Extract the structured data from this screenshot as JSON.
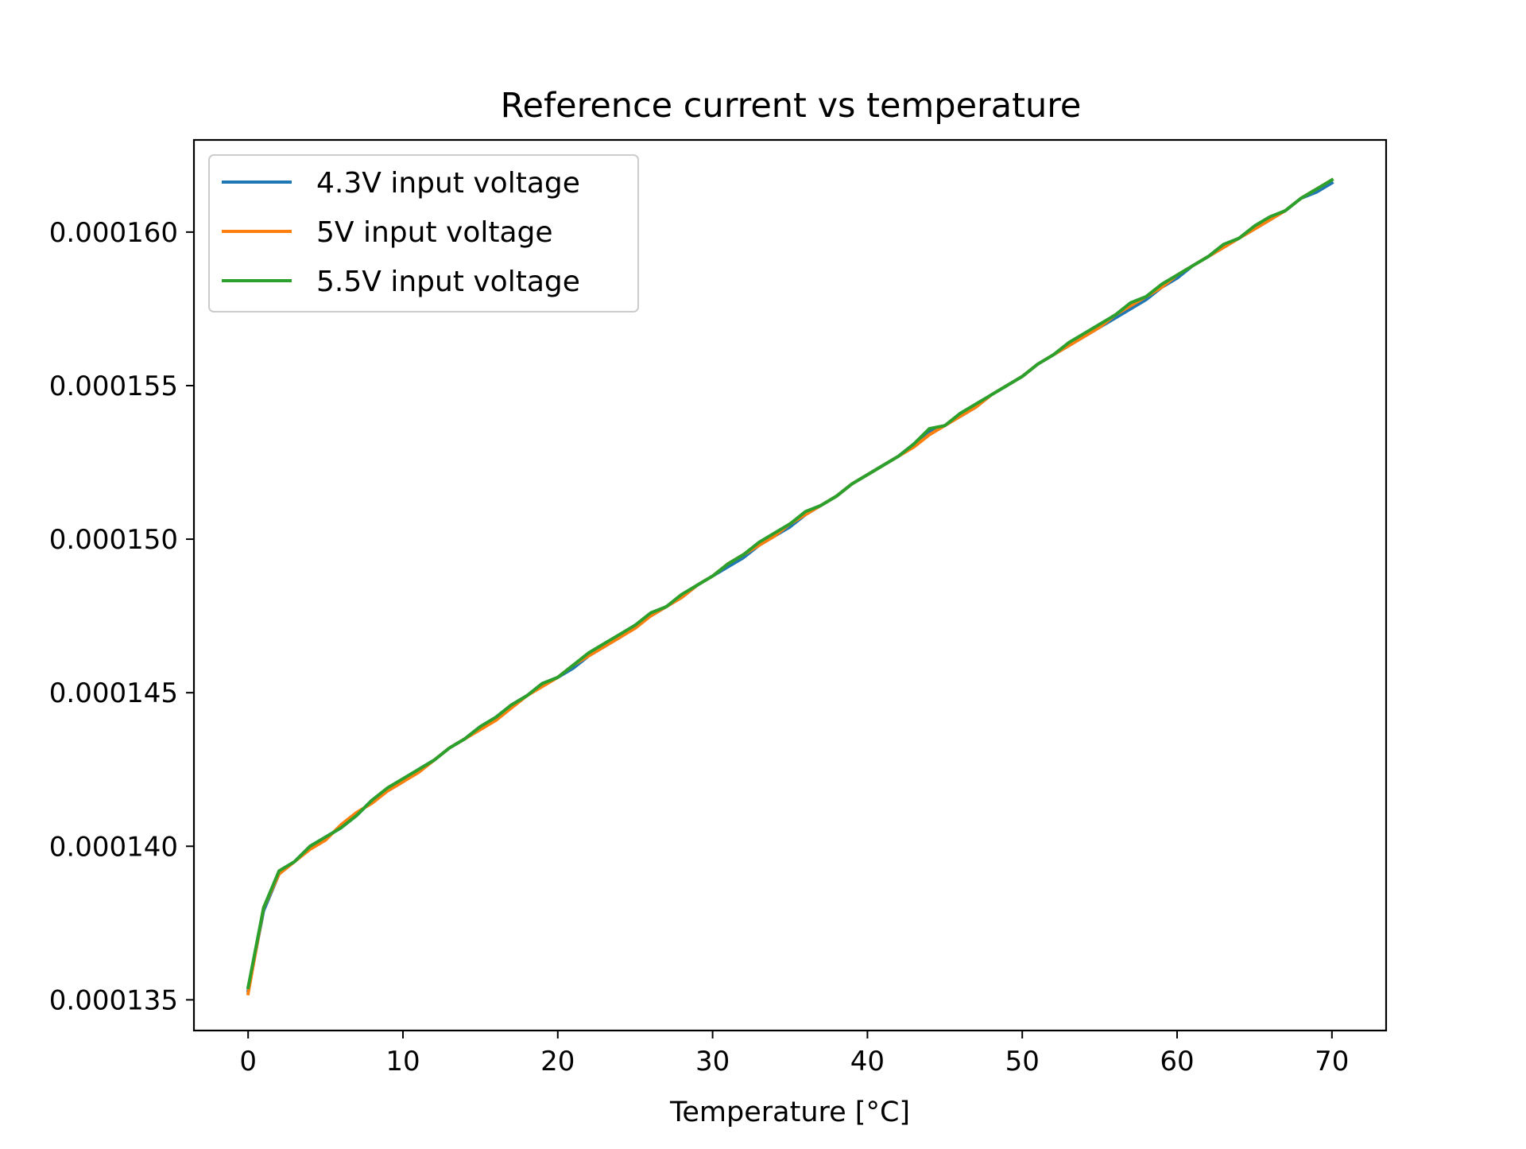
{
  "chart_data": {
    "type": "line",
    "title": "Reference current vs temperature",
    "xlabel": "Temperature [°C]",
    "ylabel": "",
    "xlim": [
      -3.5,
      73.5
    ],
    "ylim": [
      0.000134,
      0.000163
    ],
    "xticks": [
      0,
      10,
      20,
      30,
      40,
      50,
      60,
      70
    ],
    "xtick_labels": [
      "0",
      "10",
      "20",
      "30",
      "40",
      "50",
      "60",
      "70"
    ],
    "yticks": [
      0.000135,
      0.00014,
      0.000145,
      0.00015,
      0.000155,
      0.00016
    ],
    "ytick_labels": [
      "0.000135",
      "0.000140",
      "0.000145",
      "0.000150",
      "0.000155",
      "0.000160"
    ],
    "grid": false,
    "legend_position": "top-left",
    "x": [
      0,
      1,
      2,
      3,
      4,
      5,
      6,
      7,
      8,
      9,
      10,
      11,
      12,
      13,
      14,
      15,
      16,
      17,
      18,
      19,
      20,
      21,
      22,
      23,
      24,
      25,
      26,
      27,
      28,
      29,
      30,
      31,
      32,
      33,
      34,
      35,
      36,
      37,
      38,
      39,
      40,
      41,
      42,
      43,
      44,
      45,
      46,
      47,
      48,
      49,
      50,
      51,
      52,
      53,
      54,
      55,
      56,
      57,
      58,
      59,
      60,
      61,
      62,
      63,
      64,
      65,
      66,
      67,
      68,
      69,
      70
    ],
    "series": [
      {
        "name": "4.3V input voltage",
        "color": "#1f77b4",
        "values": [
          0.0001353,
          0.0001379,
          0.0001391,
          0.0001395,
          0.00014,
          0.0001403,
          0.0001406,
          0.000141,
          0.0001415,
          0.0001418,
          0.0001421,
          0.0001425,
          0.0001428,
          0.0001432,
          0.0001435,
          0.0001439,
          0.0001442,
          0.0001446,
          0.0001449,
          0.0001453,
          0.0001455,
          0.0001458,
          0.0001462,
          0.0001465,
          0.0001468,
          0.0001472,
          0.0001475,
          0.0001478,
          0.0001481,
          0.0001485,
          0.0001488,
          0.0001491,
          0.0001494,
          0.0001498,
          0.0001501,
          0.0001504,
          0.0001508,
          0.0001511,
          0.0001514,
          0.0001518,
          0.0001521,
          0.0001524,
          0.0001527,
          0.0001531,
          0.0001535,
          0.0001537,
          0.000154,
          0.0001543,
          0.0001547,
          0.000155,
          0.0001553,
          0.0001557,
          0.000156,
          0.0001563,
          0.0001566,
          0.0001569,
          0.0001572,
          0.0001575,
          0.0001578,
          0.0001582,
          0.0001585,
          0.0001589,
          0.0001592,
          0.0001595,
          0.0001598,
          0.0001601,
          0.0001604,
          0.0001607,
          0.0001611,
          0.0001613,
          0.0001616
        ]
      },
      {
        "name": "5V input voltage",
        "color": "#ff7f0e",
        "values": [
          0.0001352,
          0.000138,
          0.0001391,
          0.0001395,
          0.0001399,
          0.0001402,
          0.0001407,
          0.0001411,
          0.0001414,
          0.0001418,
          0.0001421,
          0.0001424,
          0.0001428,
          0.0001432,
          0.0001435,
          0.0001438,
          0.0001441,
          0.0001445,
          0.0001449,
          0.0001452,
          0.0001455,
          0.0001459,
          0.0001462,
          0.0001465,
          0.0001468,
          0.0001471,
          0.0001475,
          0.0001478,
          0.0001481,
          0.0001485,
          0.0001488,
          0.0001492,
          0.0001495,
          0.0001498,
          0.0001501,
          0.0001505,
          0.0001508,
          0.0001511,
          0.0001514,
          0.0001518,
          0.0001521,
          0.0001524,
          0.0001527,
          0.000153,
          0.0001534,
          0.0001537,
          0.000154,
          0.0001543,
          0.0001547,
          0.000155,
          0.0001553,
          0.0001557,
          0.000156,
          0.0001563,
          0.0001566,
          0.0001569,
          0.0001573,
          0.0001576,
          0.0001579,
          0.0001582,
          0.0001586,
          0.0001589,
          0.0001592,
          0.0001595,
          0.0001598,
          0.0001601,
          0.0001604,
          0.0001607,
          0.0001611,
          0.0001614,
          0.0001617
        ]
      },
      {
        "name": "5.5V input voltage",
        "color": "#2ca02c",
        "values": [
          0.0001354,
          0.000138,
          0.0001392,
          0.0001395,
          0.00014,
          0.0001403,
          0.0001406,
          0.000141,
          0.0001415,
          0.0001419,
          0.0001422,
          0.0001425,
          0.0001428,
          0.0001432,
          0.0001435,
          0.0001439,
          0.0001442,
          0.0001446,
          0.0001449,
          0.0001453,
          0.0001455,
          0.0001459,
          0.0001463,
          0.0001466,
          0.0001469,
          0.0001472,
          0.0001476,
          0.0001478,
          0.0001482,
          0.0001485,
          0.0001488,
          0.0001492,
          0.0001495,
          0.0001499,
          0.0001502,
          0.0001505,
          0.0001509,
          0.0001511,
          0.0001514,
          0.0001518,
          0.0001521,
          0.0001524,
          0.0001527,
          0.0001531,
          0.0001536,
          0.0001537,
          0.0001541,
          0.0001544,
          0.0001547,
          0.000155,
          0.0001553,
          0.0001557,
          0.000156,
          0.0001564,
          0.0001567,
          0.000157,
          0.0001573,
          0.0001577,
          0.0001579,
          0.0001583,
          0.0001586,
          0.0001589,
          0.0001592,
          0.0001596,
          0.0001598,
          0.0001602,
          0.0001605,
          0.0001607,
          0.0001611,
          0.0001614,
          0.0001617
        ]
      }
    ]
  }
}
